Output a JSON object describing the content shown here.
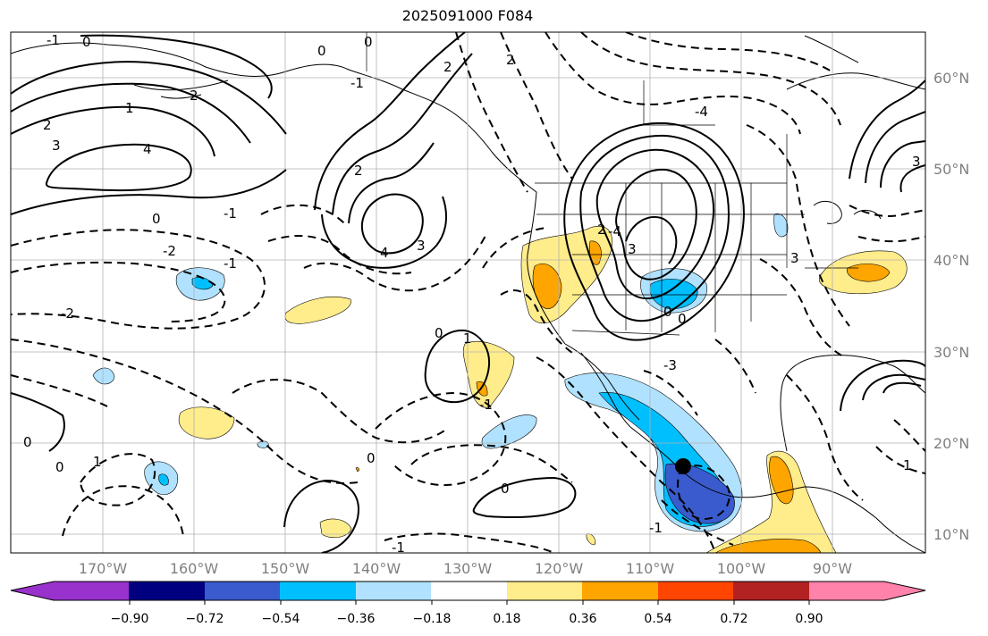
{
  "title": "2025091000 F084",
  "lon_ticks": [
    "170°W",
    "160°W",
    "150°W",
    "140°W",
    "130°W",
    "120°W",
    "110°W",
    "100°W",
    "90°W"
  ],
  "lat_ticks": [
    "60°N",
    "50°N",
    "40°N",
    "30°N",
    "20°N",
    "10°N"
  ],
  "colorbar": {
    "colors": [
      "#9932cc",
      "#000080",
      "#3a5bcd",
      "#00bfff",
      "#b0e2ff",
      "#ffffff",
      "#ffec8b",
      "#ffa500",
      "#ff4500",
      "#b22222",
      "#ff82ab"
    ],
    "tick_labels": [
      "−0.90",
      "−0.72",
      "−0.54",
      "−0.36",
      "−0.18",
      "0.18",
      "0.36",
      "0.54",
      "0.72",
      "0.90"
    ]
  },
  "contour_labels": [
    "-1",
    "0",
    "2",
    "3",
    "4",
    "0",
    "-1",
    "2",
    "1",
    "0",
    "2",
    "4",
    "3",
    "2",
    "-4",
    "3",
    "-2",
    "-1",
    "0",
    "1",
    "0",
    "-1",
    "0",
    "-1",
    "0",
    "2",
    "3",
    "-4",
    "0",
    "0",
    "-3",
    "-2",
    "0",
    "1",
    "0",
    "3",
    "-1",
    "1",
    "2",
    "-1"
  ]
}
